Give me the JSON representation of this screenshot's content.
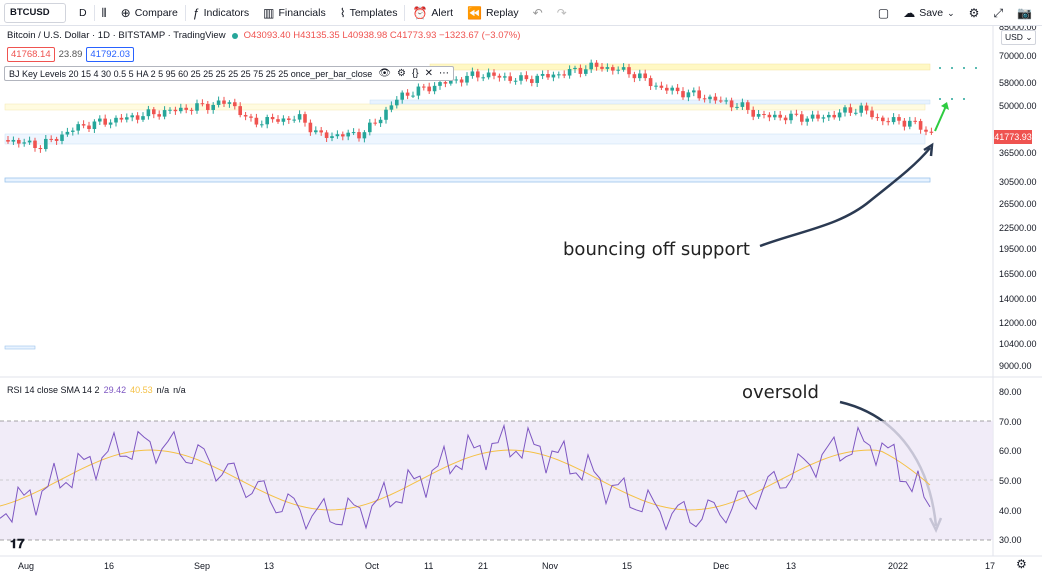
{
  "toolbar": {
    "symbol": "BTCUSD",
    "interval": "D",
    "compare_label": "Compare",
    "indicators_label": "Indicators",
    "financials_label": "Financials",
    "templates_label": "Templates",
    "alert_label": "Alert",
    "replay_label": "Replay",
    "save_label": "Save"
  },
  "legend": {
    "title": "Bitcoin / U.S. Dollar · 1D · BITSTAMP · TradingView",
    "open": "O43093.40",
    "high": "H43135.35",
    "low": "L40938.98",
    "close": "C41773.93",
    "change": "−1323.67 (−3.07%)",
    "bid": "41768.14",
    "spread": "23.89",
    "ask": "41792.03"
  },
  "indicator": {
    "label": "BJ Key Levels 20 15 4 30 0.5 5 HA 2 5 95 60 25 25 25 25 25 75 25 25 once_per_bar_close"
  },
  "rsi": {
    "label": "RSI 14 close SMA 14 2",
    "value": "29.42",
    "sma": "40.53",
    "na1": "n/a",
    "na2": "n/a"
  },
  "price_axis": {
    "currency": "USD",
    "last_price": "41773.93",
    "ticks": [
      "85000.00",
      "70000.00",
      "58000.00",
      "50000.00",
      "36500.00",
      "30500.00",
      "26500.00",
      "22500.00",
      "19500.00",
      "16500.00",
      "14000.00",
      "12000.00",
      "10400.00",
      "9000.00"
    ]
  },
  "rsi_axis": {
    "ticks": [
      "80.00",
      "70.00",
      "60.00",
      "50.00",
      "40.00",
      "30.00"
    ]
  },
  "time_axis": {
    "ticks": [
      "Aug",
      "16",
      "Sep",
      "13",
      "Oct",
      "11",
      "21",
      "Nov",
      "15",
      "Dec",
      "13",
      "2022",
      "17"
    ]
  },
  "annotations": {
    "support": "bouncing off support",
    "oversold": "oversold"
  },
  "colors": {
    "up": "#26a69a",
    "down": "#ef5350",
    "rsi_line": "#7e57c2",
    "rsi_sma": "#f5c146",
    "rsi_band": "#ede7f6"
  }
}
